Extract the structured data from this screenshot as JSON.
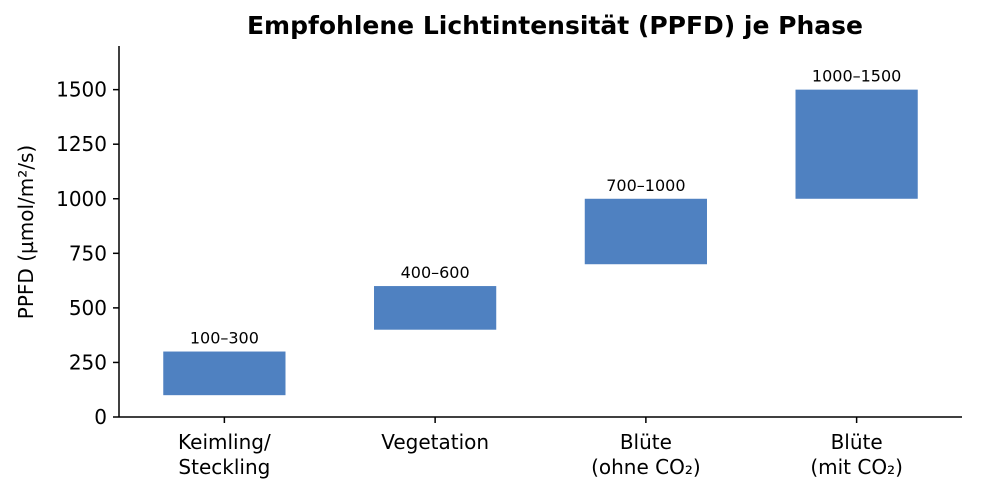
{
  "chart_data": {
    "type": "bar",
    "title": "Empfohlene Lichtintensität (PPFD) je Phase",
    "xlabel": "",
    "ylabel": "PPFD (µmol/m²/s)",
    "ylim": [
      0,
      1700
    ],
    "yticks": [
      0,
      250,
      500,
      750,
      1000,
      1250,
      1500
    ],
    "grid": false,
    "bar_color": "#4f81c1",
    "categories": [
      [
        "Keimling/",
        "Steckling"
      ],
      [
        "Vegetation"
      ],
      [
        "Blüte",
        "(ohne CO₂)"
      ],
      [
        "Blüte",
        "(mit CO₂)"
      ]
    ],
    "ranges": [
      {
        "low": 100,
        "high": 300,
        "label": "100–300"
      },
      {
        "low": 400,
        "high": 600,
        "label": "400–600"
      },
      {
        "low": 700,
        "high": 1000,
        "label": "700–1000"
      },
      {
        "low": 1000,
        "high": 1500,
        "label": "1000–1500"
      }
    ]
  }
}
